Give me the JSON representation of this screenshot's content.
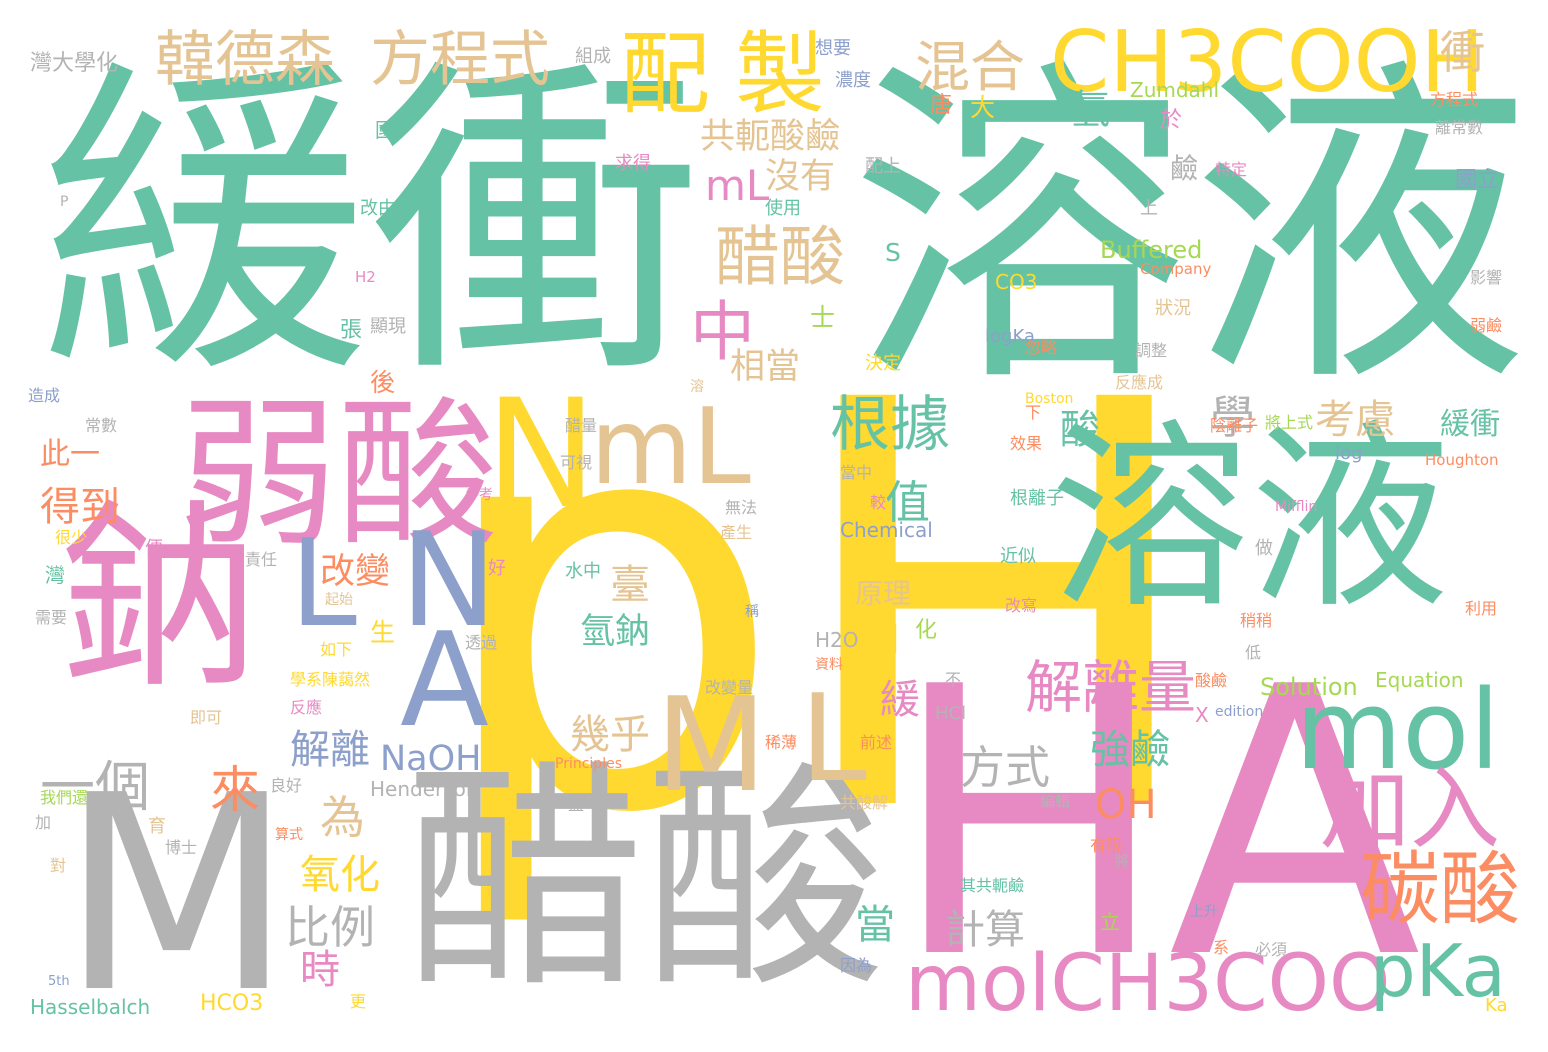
{
  "palette": {
    "green": "#66c2a5",
    "pink": "#e78ac3",
    "yellow": "#ffd92f",
    "gray": "#b3b3b3",
    "tan": "#e5c494",
    "orange": "#fc8d62",
    "blue": "#8da0cb",
    "lime": "#a6d854"
  },
  "words": [
    {
      "text": "pH",
      "color": "yellow",
      "weight": 10
    },
    {
      "text": "緩衝",
      "color": "green",
      "weight": 9
    },
    {
      "text": "溶液",
      "color": "green",
      "weight": 9
    },
    {
      "text": "HA",
      "color": "pink",
      "weight": 9
    },
    {
      "text": "醋酸",
      "color": "gray",
      "weight": 8
    },
    {
      "text": "M",
      "color": "gray",
      "weight": 8
    },
    {
      "text": "溶液",
      "color": "green",
      "weight": 7
    },
    {
      "text": "弱酸",
      "color": "pink",
      "weight": 6
    },
    {
      "text": "鈉",
      "color": "pink",
      "weight": 6
    },
    {
      "text": "N",
      "color": "yellow",
      "weight": 5
    },
    {
      "text": "mL",
      "color": "tan",
      "weight": 5
    },
    {
      "text": "M",
      "color": "tan",
      "weight": 5
    },
    {
      "text": "L",
      "color": "tan",
      "weight": 5
    },
    {
      "text": "N",
      "color": "blue",
      "weight": 5
    },
    {
      "text": "A",
      "color": "blue",
      "weight": 5
    },
    {
      "text": "mol",
      "color": "green",
      "weight": 5
    },
    {
      "text": "L",
      "color": "blue",
      "weight": 4
    },
    {
      "text": "CH3COOH",
      "color": "yellow",
      "weight": 4
    },
    {
      "text": "配",
      "color": "yellow",
      "weight": 4
    },
    {
      "text": "製",
      "color": "yellow",
      "weight": 4
    },
    {
      "text": "加入",
      "color": "pink",
      "weight": 4
    },
    {
      "text": "molCH3COO",
      "color": "pink",
      "weight": 4
    },
    {
      "text": "碳酸",
      "color": "orange",
      "weight": 4
    },
    {
      "text": "pKa",
      "color": "green",
      "weight": 4
    },
    {
      "text": "中",
      "color": "pink",
      "weight": 3
    },
    {
      "text": "醋酸",
      "color": "tan",
      "weight": 3
    },
    {
      "text": "韓德森",
      "color": "tan",
      "weight": 3
    },
    {
      "text": "方程式",
      "color": "tan",
      "weight": 3
    },
    {
      "text": "混合",
      "color": "tan",
      "weight": 3
    },
    {
      "text": "根據",
      "color": "green",
      "weight": 3
    },
    {
      "text": "解離量",
      "color": "pink",
      "weight": 3
    },
    {
      "text": "衝",
      "color": "tan",
      "weight": 2
    },
    {
      "text": "mL",
      "color": "pink",
      "weight": 2
    },
    {
      "text": "共軛酸鹼",
      "color": "tan",
      "weight": 2
    },
    {
      "text": "沒有",
      "color": "tan",
      "weight": 2
    },
    {
      "text": "相當",
      "color": "tan",
      "weight": 2
    },
    {
      "text": "學",
      "color": "gray",
      "weight": 2
    },
    {
      "text": "酸",
      "color": "green",
      "weight": 2
    },
    {
      "text": "考慮",
      "color": "tan",
      "weight": 2
    },
    {
      "text": "緩衝",
      "color": "green",
      "weight": 2
    },
    {
      "text": "值",
      "color": "green",
      "weight": 2
    },
    {
      "text": "臺",
      "color": "tan",
      "weight": 2
    },
    {
      "text": "氫鈉",
      "color": "green",
      "weight": 2
    },
    {
      "text": "改變",
      "color": "orange",
      "weight": 2
    },
    {
      "text": "此一",
      "color": "orange",
      "weight": 2
    },
    {
      "text": "得到",
      "color": "orange",
      "weight": 2
    },
    {
      "text": "一個",
      "color": "gray",
      "weight": 2
    },
    {
      "text": "來",
      "color": "orange",
      "weight": 2
    },
    {
      "text": "解離",
      "color": "blue",
      "weight": 2
    },
    {
      "text": "NaOH",
      "color": "blue",
      "weight": 2
    },
    {
      "text": "幾乎",
      "color": "tan",
      "weight": 2
    },
    {
      "text": "方式",
      "color": "gray",
      "weight": 2
    },
    {
      "text": "強鹼",
      "color": "green",
      "weight": 2
    },
    {
      "text": "OH",
      "color": "orange",
      "weight": 2
    },
    {
      "text": "為",
      "color": "tan",
      "weight": 2
    },
    {
      "text": "氧化",
      "color": "yellow",
      "weight": 2
    },
    {
      "text": "比例",
      "color": "gray",
      "weight": 2
    },
    {
      "text": "時",
      "color": "pink",
      "weight": 2
    },
    {
      "text": "當",
      "color": "green",
      "weight": 2
    },
    {
      "text": "計算",
      "color": "gray",
      "weight": 2
    },
    {
      "text": "緩",
      "color": "pink",
      "weight": 2
    },
    {
      "text": "H",
      "color": "yellow",
      "weight": 2
    },
    {
      "text": "氫",
      "color": "green",
      "weight": 2
    },
    {
      "text": "唐",
      "color": "orange",
      "weight": 1
    },
    {
      "text": "大",
      "color": "yellow",
      "weight": 1
    },
    {
      "text": "於",
      "color": "pink",
      "weight": 1
    },
    {
      "text": "鹼",
      "color": "gray",
      "weight": 1
    },
    {
      "text": "國立",
      "color": "blue",
      "weight": 1
    },
    {
      "text": "Zumdahl",
      "color": "lime",
      "weight": 1
    },
    {
      "text": "Buffered",
      "color": "lime",
      "weight": 1
    },
    {
      "text": "Company",
      "color": "orange",
      "weight": 1
    },
    {
      "text": "S",
      "color": "green",
      "weight": 1
    },
    {
      "text": "士",
      "color": "lime",
      "weight": 1
    },
    {
      "text": "後",
      "color": "orange",
      "weight": 1
    },
    {
      "text": "生",
      "color": "yellow",
      "weight": 1
    },
    {
      "text": "化",
      "color": "lime",
      "weight": 1
    },
    {
      "text": "原理",
      "color": "tan",
      "weight": 1
    },
    {
      "text": "X",
      "color": "pink",
      "weight": 1
    },
    {
      "text": "Solution",
      "color": "lime",
      "weight": 1
    },
    {
      "text": "Equation",
      "color": "lime",
      "weight": 1
    },
    {
      "text": "Henderson",
      "color": "gray",
      "weight": 1
    },
    {
      "text": "Chemical",
      "color": "blue",
      "weight": 1
    },
    {
      "text": "Hasselbalch",
      "color": "green",
      "weight": 1
    },
    {
      "text": "HCO3",
      "color": "yellow",
      "weight": 1
    },
    {
      "text": "H2O",
      "color": "gray",
      "weight": 1
    },
    {
      "text": "HCl",
      "color": "gray",
      "weight": 1
    },
    {
      "text": "CO3",
      "color": "yellow",
      "weight": 1
    },
    {
      "text": "logKa",
      "color": "blue",
      "weight": 1
    },
    {
      "text": "log",
      "color": "blue",
      "weight": 1
    },
    {
      "text": "Houghton",
      "color": "orange",
      "weight": 1
    },
    {
      "text": "Mifflin",
      "color": "pink",
      "weight": 1
    },
    {
      "text": "Boston",
      "color": "yellow",
      "weight": 1
    },
    {
      "text": "Principles",
      "color": "orange",
      "weight": 1
    },
    {
      "text": "edition",
      "color": "blue",
      "weight": 1
    },
    {
      "text": "5th",
      "color": "blue",
      "weight": 1
    },
    {
      "text": "Ka",
      "color": "yellow",
      "weight": 1
    },
    {
      "text": "P",
      "color": "gray",
      "weight": 1
    },
    {
      "text": "H2",
      "color": "pink",
      "weight": 1
    },
    {
      "text": "灣大學化",
      "color": "gray",
      "weight": 1
    },
    {
      "text": "組成",
      "color": "gray",
      "weight": 1
    },
    {
      "text": "想要",
      "color": "blue",
      "weight": 1
    },
    {
      "text": "濃度",
      "color": "blue",
      "weight": 1
    },
    {
      "text": "國",
      "color": "green",
      "weight": 1
    },
    {
      "text": "求得",
      "color": "pink",
      "weight": 1
    },
    {
      "text": "配上",
      "color": "gray",
      "weight": 1
    },
    {
      "text": "改由",
      "color": "green",
      "weight": 1
    },
    {
      "text": "使用",
      "color": "green",
      "weight": 1
    },
    {
      "text": "上",
      "color": "gray",
      "weight": 1
    },
    {
      "text": "離常數",
      "color": "gray",
      "weight": 1
    },
    {
      "text": "方程式",
      "color": "orange",
      "weight": 1
    },
    {
      "text": "特定",
      "color": "pink",
      "weight": 1
    },
    {
      "text": "張",
      "color": "green",
      "weight": 1
    },
    {
      "text": "顯現",
      "color": "gray",
      "weight": 1
    },
    {
      "text": "造成",
      "color": "blue",
      "weight": 1
    },
    {
      "text": "常數",
      "color": "gray",
      "weight": 1
    },
    {
      "text": "狀況",
      "color": "tan",
      "weight": 1
    },
    {
      "text": "影響",
      "color": "gray",
      "weight": 1
    },
    {
      "text": "弱鹼",
      "color": "orange",
      "weight": 1
    },
    {
      "text": "調整",
      "color": "gray",
      "weight": 1
    },
    {
      "text": "反應成",
      "color": "tan",
      "weight": 1
    },
    {
      "text": "忽略",
      "color": "orange",
      "weight": 1
    },
    {
      "text": "決定",
      "color": "yellow",
      "weight": 1
    },
    {
      "text": "溶",
      "color": "tan",
      "weight": 1
    },
    {
      "text": "下",
      "color": "orange",
      "weight": 1
    },
    {
      "text": "陰離子",
      "color": "orange",
      "weight": 1
    },
    {
      "text": "將上式",
      "color": "lime",
      "weight": 1
    },
    {
      "text": "效果",
      "color": "orange",
      "weight": 1
    },
    {
      "text": "醋量",
      "color": "gray",
      "weight": 1
    },
    {
      "text": "可視",
      "color": "gray",
      "weight": 1
    },
    {
      "text": "當中",
      "color": "gray",
      "weight": 1
    },
    {
      "text": "較",
      "color": "pink",
      "weight": 1
    },
    {
      "text": "根離子",
      "color": "green",
      "weight": 1
    },
    {
      "text": "參考",
      "color": "pink",
      "weight": 1
    },
    {
      "text": "無法",
      "color": "gray",
      "weight": 1
    },
    {
      "text": "產生",
      "color": "tan",
      "weight": 1
    },
    {
      "text": "很少",
      "color": "yellow",
      "weight": 1
    },
    {
      "text": "便",
      "color": "pink",
      "weight": 1
    },
    {
      "text": "責任",
      "color": "gray",
      "weight": 1
    },
    {
      "text": "好",
      "color": "pink",
      "weight": 1
    },
    {
      "text": "水中",
      "color": "green",
      "weight": 1
    },
    {
      "text": "近似",
      "color": "green",
      "weight": 1
    },
    {
      "text": "做",
      "color": "gray",
      "weight": 1
    },
    {
      "text": "灣",
      "color": "green",
      "weight": 1
    },
    {
      "text": "起始",
      "color": "tan",
      "weight": 1
    },
    {
      "text": "稱",
      "color": "blue",
      "weight": 1
    },
    {
      "text": "需要",
      "color": "gray",
      "weight": 1
    },
    {
      "text": "透過",
      "color": "gray",
      "weight": 1
    },
    {
      "text": "改寫",
      "color": "pink",
      "weight": 1
    },
    {
      "text": "稍稍",
      "color": "orange",
      "weight": 1
    },
    {
      "text": "利用",
      "color": "orange",
      "weight": 1
    },
    {
      "text": "如下",
      "color": "yellow",
      "weight": 1
    },
    {
      "text": "資料",
      "color": "orange",
      "weight": 1
    },
    {
      "text": "低",
      "color": "gray",
      "weight": 1
    },
    {
      "text": "學系陳藹然",
      "color": "yellow",
      "weight": 1
    },
    {
      "text": "不",
      "color": "gray",
      "weight": 1
    },
    {
      "text": "酸鹼",
      "color": "orange",
      "weight": 1
    },
    {
      "text": "反應",
      "color": "pink",
      "weight": 1
    },
    {
      "text": "改變量",
      "color": "gray",
      "weight": 1
    },
    {
      "text": "即可",
      "color": "tan",
      "weight": 1
    },
    {
      "text": "前述",
      "color": "orange",
      "weight": 1
    },
    {
      "text": "稀薄",
      "color": "orange",
      "weight": 1
    },
    {
      "text": "良好",
      "color": "gray",
      "weight": 1
    },
    {
      "text": "我們還",
      "color": "lime",
      "weight": 1
    },
    {
      "text": "鹽",
      "color": "gray",
      "weight": 1
    },
    {
      "text": "共酸解",
      "color": "tan",
      "weight": 1
    },
    {
      "text": "編輯",
      "color": "gray",
      "weight": 1
    },
    {
      "text": "加",
      "color": "gray",
      "weight": 1
    },
    {
      "text": "育",
      "color": "tan",
      "weight": 1
    },
    {
      "text": "算式",
      "color": "orange",
      "weight": 1
    },
    {
      "text": "博士",
      "color": "gray",
      "weight": 1
    },
    {
      "text": "有限",
      "color": "orange",
      "weight": 1
    },
    {
      "text": "將",
      "color": "gray",
      "weight": 1
    },
    {
      "text": "對",
      "color": "tan",
      "weight": 1
    },
    {
      "text": "其共軛鹼",
      "color": "green",
      "weight": 1
    },
    {
      "text": "上升",
      "color": "blue",
      "weight": 1
    },
    {
      "text": "立",
      "color": "lime",
      "weight": 1
    },
    {
      "text": "系",
      "color": "orange",
      "weight": 1
    },
    {
      "text": "必須",
      "color": "gray",
      "weight": 1
    },
    {
      "text": "因為",
      "color": "blue",
      "weight": 1
    },
    {
      "text": "更",
      "color": "yellow",
      "weight": 1
    }
  ]
}
